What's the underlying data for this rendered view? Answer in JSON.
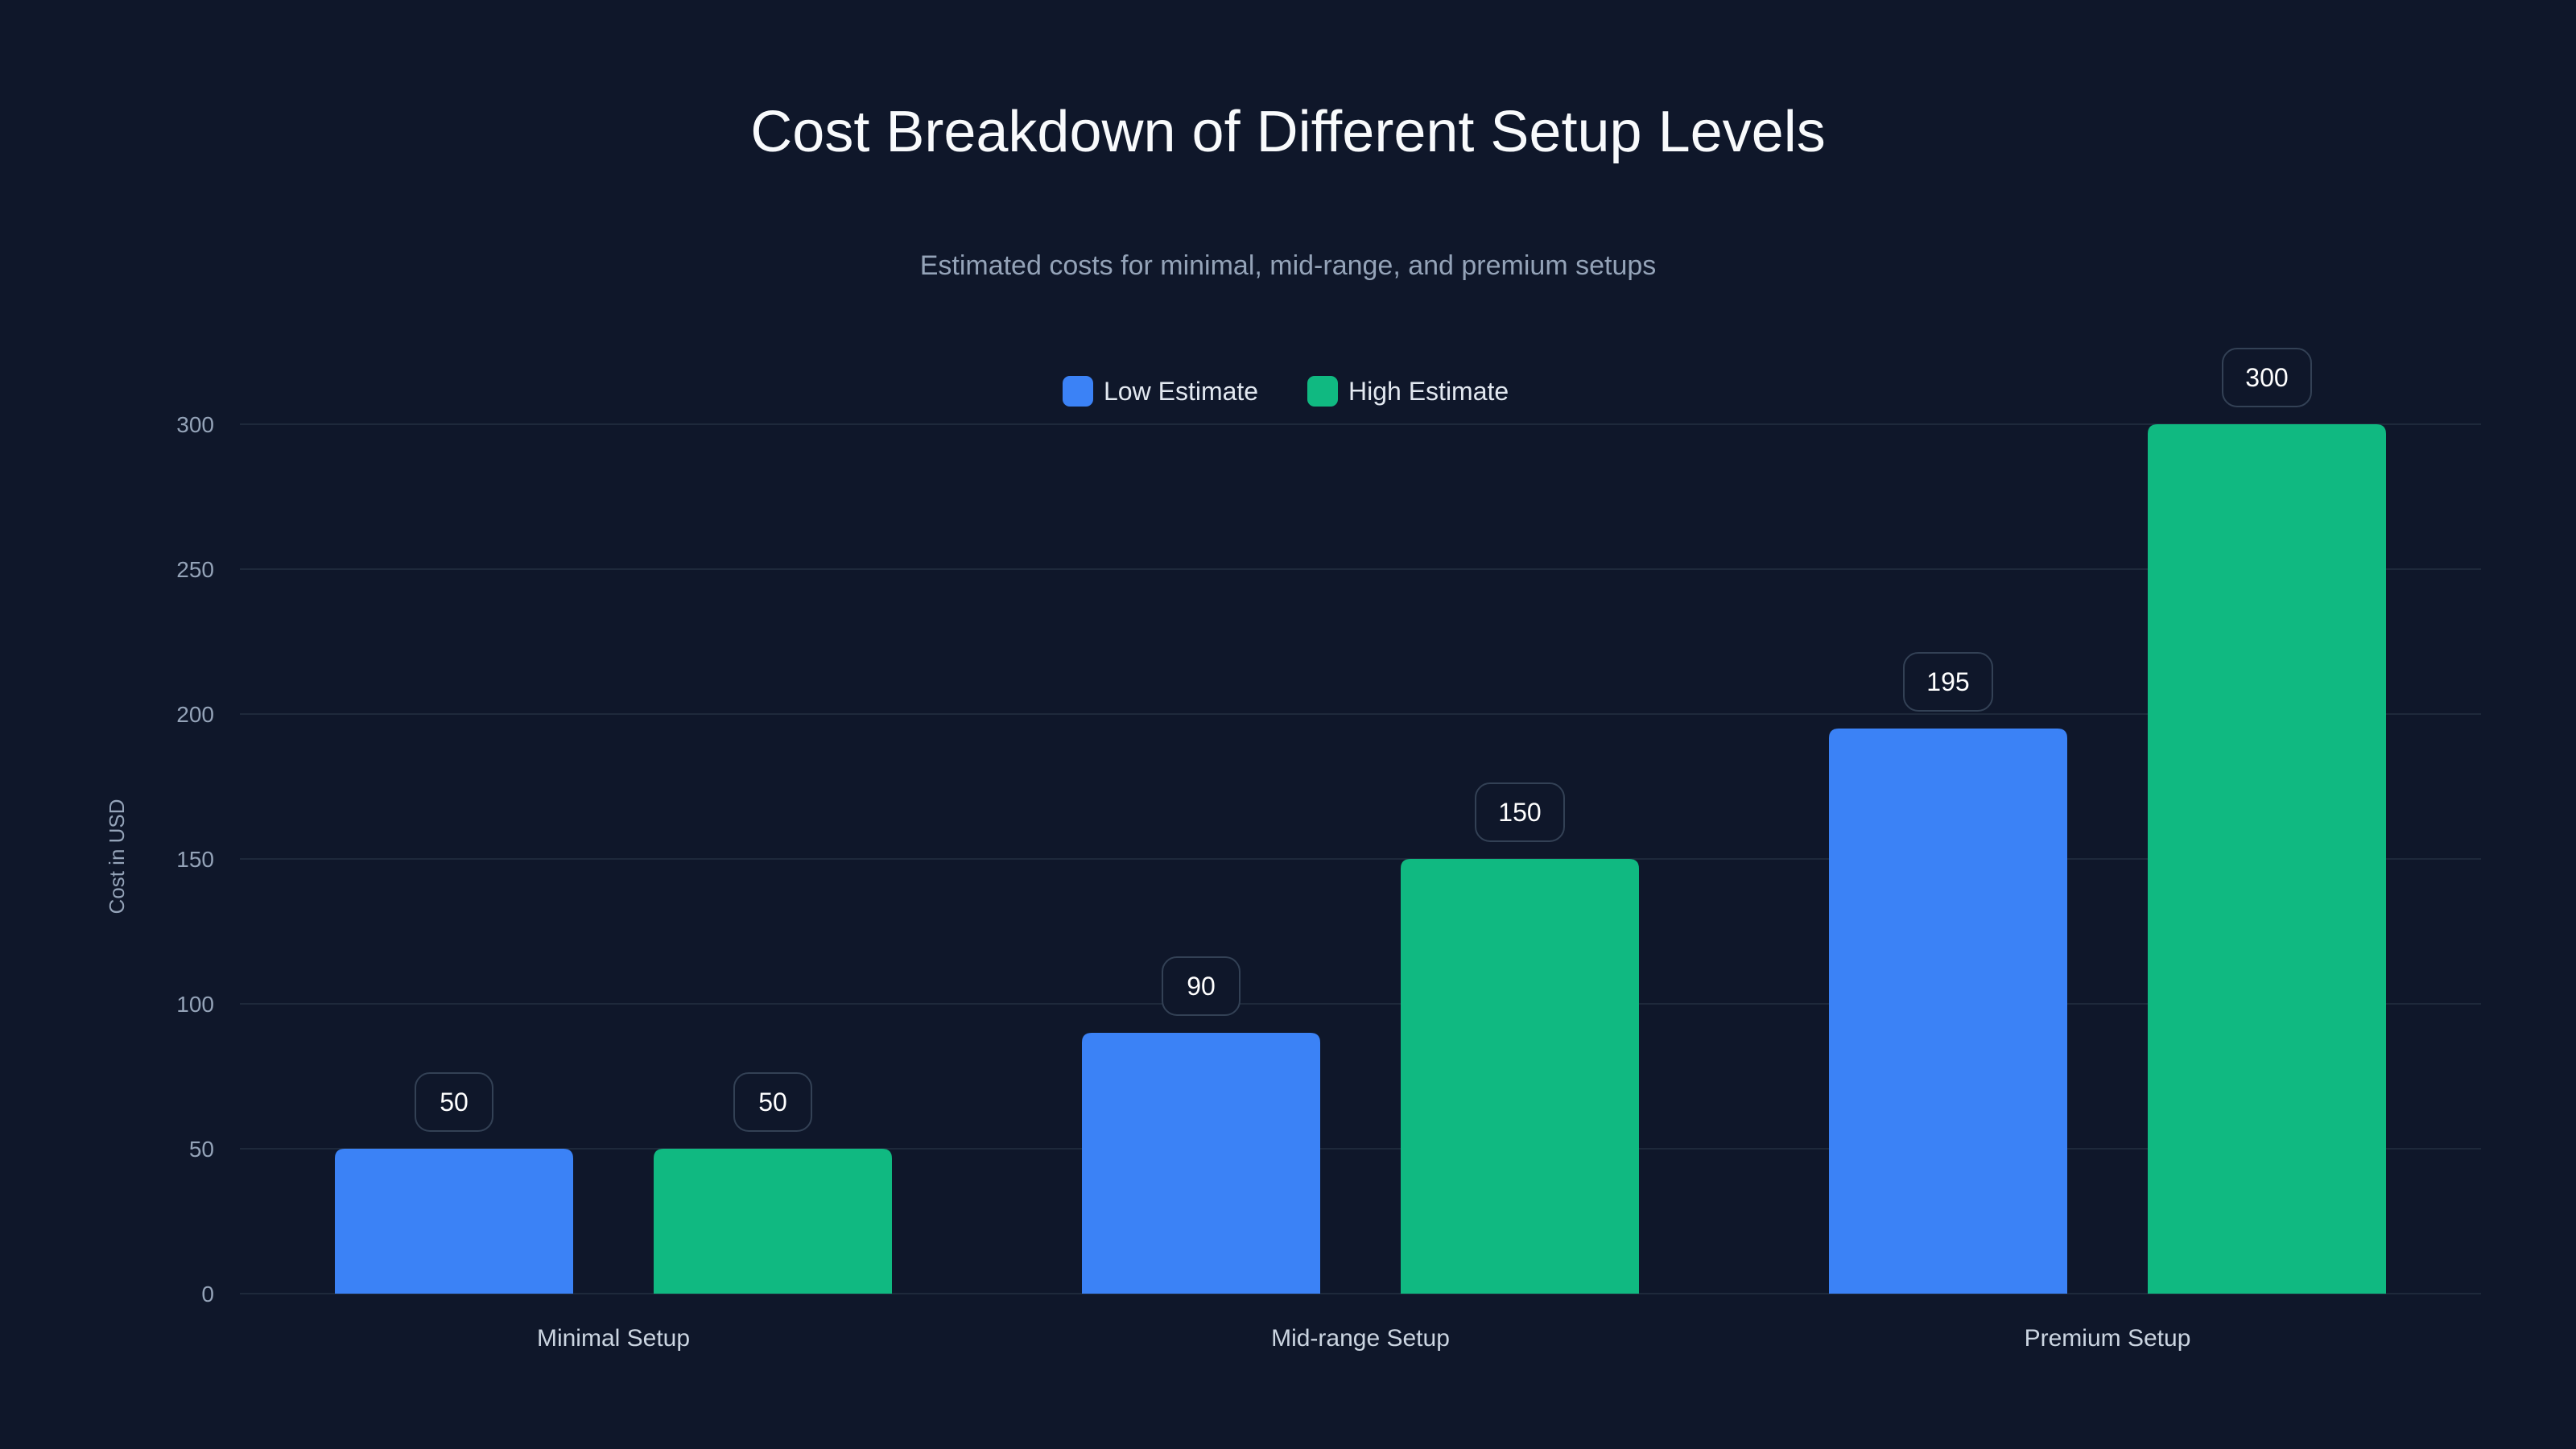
{
  "chart_data": {
    "type": "bar",
    "title": "Cost Breakdown of Different Setup Levels",
    "subtitle": "Estimated costs for minimal, mid-range, and premium setups",
    "xlabel": "",
    "ylabel": "Cost in USD",
    "ylim": [
      0,
      300
    ],
    "yticks": [
      0,
      50,
      100,
      150,
      200,
      250,
      300
    ],
    "grid": true,
    "legend_position": "top-center",
    "categories": [
      "Minimal Setup",
      "Mid-range Setup",
      "Premium Setup"
    ],
    "series": [
      {
        "name": "Low Estimate",
        "color": "#3b82f6",
        "values": [
          50,
          90,
          195
        ]
      },
      {
        "name": "High Estimate",
        "color": "#10b981",
        "values": [
          50,
          150,
          300
        ]
      }
    ]
  },
  "colors": {
    "background": "#0f172a",
    "grid": "#1e293b",
    "label_border": "#334155"
  }
}
